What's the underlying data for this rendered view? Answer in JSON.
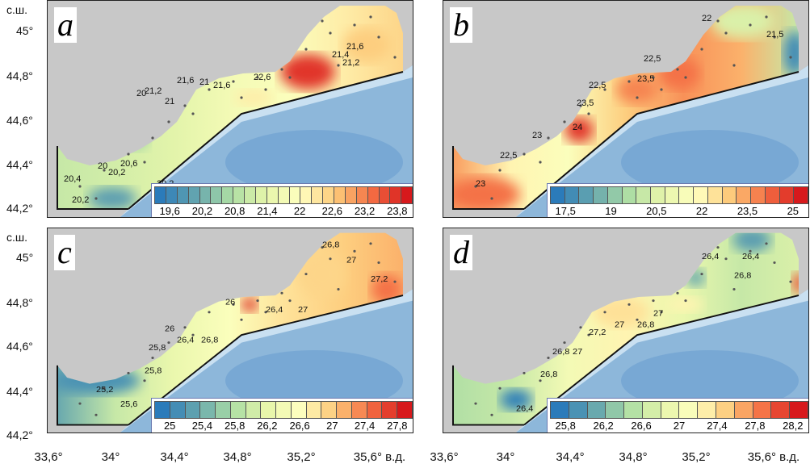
{
  "axes": {
    "lat_unit": "с.ш.",
    "lat_ticks": [
      "45°",
      "44,8°",
      "44,6°",
      "44,4°",
      "44,2°"
    ],
    "lon_ticks": [
      "33,6°",
      "34°",
      "34,4°",
      "34,8°",
      "35,2°",
      "35,6° в.д."
    ]
  },
  "colors": {
    "land": "#c8c8c8",
    "deep_sea": "#8db7da",
    "deep_sea_dark": "#6b9fd0",
    "shelf_light": "#c9e0f1"
  },
  "panels": [
    {
      "letter": "a",
      "colorbar": {
        "ticks": [
          "19,6",
          "20,2",
          "20,8",
          "21,4",
          "22",
          "22,6",
          "23,2",
          "23,8"
        ],
        "cells": 23
      },
      "contour_labels": [
        "20,4",
        "20,6",
        "20,2",
        "20,2",
        "20",
        "20,2",
        "20",
        "21,2",
        "21",
        "21,6",
        "21",
        "21,6",
        "22,6",
        "21,4",
        "21,2",
        "21,6"
      ]
    },
    {
      "letter": "b",
      "colorbar": {
        "ticks": [
          "17,5",
          "19",
          "20,5",
          "22",
          "23,5",
          "25"
        ],
        "cells": 18
      },
      "contour_labels": [
        "23",
        "22,5",
        "23",
        "24",
        "23,5",
        "22,5",
        "23,5",
        "22,5",
        "22",
        "21,5"
      ]
    },
    {
      "letter": "c",
      "colorbar": {
        "ticks": [
          "25",
          "25,4",
          "25,8",
          "26,2",
          "26,6",
          "27",
          "27,4",
          "27,8"
        ],
        "cells": 17
      },
      "contour_labels": [
        "25,2",
        "25,6",
        "25,8",
        "25,8",
        "26",
        "26,4",
        "26,8",
        "26",
        "26,4",
        "27",
        "26,8",
        "27",
        "27,2"
      ]
    },
    {
      "letter": "d",
      "colorbar": {
        "ticks": [
          "25,8",
          "26,2",
          "26,6",
          "27",
          "27,4",
          "27,8",
          "28,2"
        ],
        "cells": 14
      },
      "contour_labels": [
        "26,4",
        "26,8",
        "26,8",
        "27",
        "27,2",
        "27",
        "26,8",
        "27",
        "26,4",
        "26,8",
        "26,4"
      ]
    }
  ]
}
